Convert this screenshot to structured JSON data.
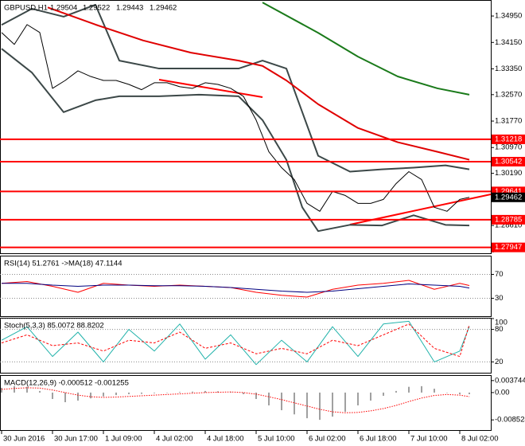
{
  "chart_data": [
    {
      "type": "price",
      "title": "GBPUSD,H1",
      "ohlc": [
        1.29504,
        1.29522,
        1.29443,
        1.29462
      ],
      "xlim": [
        -0.5,
        153.75
      ],
      "ylim": [
        1.2777,
        1.3541
      ],
      "grid": false,
      "yticks": [
        {
          "value": 1.3495,
          "label": "1.34950"
        },
        {
          "value": 1.3415,
          "label": "1.34150"
        },
        {
          "value": 1.3335,
          "label": "1.33350"
        },
        {
          "value": 1.3257,
          "label": "1.32570"
        },
        {
          "value": 1.3177,
          "label": "1.31770"
        },
        {
          "value": 1.3097,
          "label": "1.30970"
        },
        {
          "value": 1.3019,
          "label": "1.30190"
        },
        {
          "value": 1.2861,
          "label": "1.28610"
        },
        {
          "value": 1.2781,
          "label": "1.27810"
        }
      ],
      "levels": [
        1.31218,
        1.30542,
        1.29641,
        1.28785,
        1.27947
      ],
      "level_color": "#ff0000",
      "series": [
        {
          "color": "#3c4848",
          "width": 2,
          "x": [
            0,
            9.5,
            19.5,
            29.5,
            37,
            49.5,
            62,
            74.5,
            82,
            89.5,
            94.5,
            99.5,
            109.5,
            119.5,
            129.5,
            139.5,
            147
          ],
          "values": [
            1.3468,
            1.3517,
            1.3493,
            1.3529,
            1.336,
            1.3336,
            1.3336,
            1.3336,
            1.336,
            1.3336,
            1.3204,
            1.3072,
            1.3024,
            1.3031,
            1.3036,
            1.3043,
            1.3031
          ]
        },
        {
          "color": "#3c4848",
          "width": 2,
          "x": [
            0,
            9.5,
            19.5,
            29.5,
            37,
            49.5,
            62,
            74.5,
            82,
            89.5,
            94.5,
            99.5,
            109.5,
            119.5,
            129.5,
            139.5,
            147
          ],
          "values": [
            1.3396,
            1.3324,
            1.3204,
            1.324,
            1.3252,
            1.3252,
            1.3257,
            1.3252,
            1.318,
            1.306,
            1.2916,
            1.2844,
            1.2863,
            1.2861,
            1.2892,
            1.2863,
            1.2861
          ]
        },
        {
          "color": "#e00000",
          "width": 2,
          "x": [
            14.5,
            29.5,
            44.5,
            59.5,
            74.5,
            82,
            89.5,
            99.5,
            112,
            124.5,
            137,
            147
          ],
          "values": [
            1.3521,
            1.3469,
            1.3421,
            1.3384,
            1.336,
            1.3344,
            1.33,
            1.3228,
            1.3156,
            1.3113,
            1.3084,
            1.306
          ]
        },
        {
          "color": "#1a7a1a",
          "width": 2,
          "x": [
            82,
            99.5,
            112,
            124.5,
            137,
            147
          ],
          "values": [
            1.3536,
            1.3444,
            1.3372,
            1.3312,
            1.3276,
            1.3257
          ]
        },
        {
          "color": "#000000",
          "width": 1,
          "x": [
            0,
            4,
            8,
            12,
            16,
            20,
            24,
            28,
            32,
            36,
            40,
            44,
            48,
            52,
            56,
            60,
            64,
            68,
            72,
            76,
            80,
            84,
            88,
            92,
            96,
            100,
            104,
            108,
            112,
            116,
            120,
            124,
            128,
            132,
            136,
            140,
            144,
            147
          ],
          "values": [
            1.3445,
            1.3409,
            1.3469,
            1.3445,
            1.3276,
            1.33,
            1.3329,
            1.3312,
            1.33,
            1.33,
            1.3288,
            1.3272,
            1.3293,
            1.3293,
            1.3281,
            1.3276,
            1.3293,
            1.3288,
            1.3276,
            1.3252,
            1.318,
            1.3084,
            1.3036,
            1.3,
            1.2928,
            1.2904,
            1.2964,
            1.2952,
            1.2928,
            1.2928,
            1.294,
            1.2988,
            1.3024,
            1.3,
            1.2916,
            1.2904,
            1.294,
            1.29462
          ]
        }
      ]
    },
    {
      "type": "line",
      "title": "RSI(14) 51.2761 ->MA(18) 47.1144",
      "xlim": [
        -0.5,
        153.75
      ],
      "ylim": [
        0,
        100
      ],
      "yticks": [
        30,
        70
      ],
      "grid": true,
      "x": [
        0,
        8,
        16,
        24,
        32,
        40,
        48,
        56,
        64,
        72,
        80,
        88,
        96,
        104,
        112,
        120,
        128,
        136,
        144,
        147
      ],
      "series": [
        {
          "color": "#ff0000",
          "width": 1,
          "values": [
            55,
            58,
            50,
            40,
            55,
            52,
            50,
            52,
            50,
            48,
            40,
            35,
            32,
            45,
            52,
            55,
            60,
            45,
            55,
            51.2761
          ]
        },
        {
          "color": "#000080",
          "width": 1,
          "values": [
            55,
            55,
            52,
            50,
            52,
            52,
            51,
            51,
            50,
            48,
            45,
            42,
            40,
            42,
            46,
            50,
            54,
            52,
            50,
            47.1144
          ]
        }
      ]
    },
    {
      "type": "line",
      "title": "Stoch(5,3,3) 85.0072 88.8202",
      "xlim": [
        -0.5,
        153.75
      ],
      "ylim": [
        0,
        100
      ],
      "yticks": [
        20,
        80,
        100
      ],
      "grid": true,
      "x": [
        0,
        8,
        16,
        24,
        32,
        40,
        48,
        56,
        64,
        72,
        80,
        88,
        96,
        104,
        112,
        120,
        128,
        136,
        144,
        147
      ],
      "series": [
        {
          "color": "#20b2aa",
          "width": 1,
          "values": [
            60,
            85,
            30,
            75,
            20,
            80,
            40,
            90,
            25,
            70,
            15,
            60,
            20,
            85,
            30,
            90,
            95,
            20,
            40,
            85.0072
          ]
        },
        {
          "color": "#ff0000",
          "width": 1,
          "style": "dashed",
          "values": [
            55,
            70,
            50,
            55,
            40,
            60,
            55,
            75,
            45,
            55,
            35,
            45,
            35,
            60,
            50,
            70,
            90,
            45,
            30,
            88.8202
          ]
        }
      ]
    },
    {
      "type": "macd",
      "title": "MACD(12,26,9) -0.000512 -0.001255",
      "xlim": [
        -0.5,
        153.75
      ],
      "ylim": [
        -0.0117,
        0.0052
      ],
      "grid": false,
      "yticks": [
        0.003744,
        {
          "value": 0,
          "label": "0.00"
        },
        -0.008524
      ],
      "x": [
        0,
        4,
        8,
        12,
        16,
        20,
        24,
        28,
        32,
        36,
        40,
        44,
        48,
        52,
        56,
        60,
        64,
        68,
        72,
        76,
        80,
        84,
        88,
        92,
        96,
        100,
        104,
        108,
        112,
        116,
        120,
        124,
        128,
        132,
        136,
        140,
        144,
        147
      ],
      "bars": {
        "color": "#a0a0a0",
        "values": [
          0.0015,
          0.002,
          0.0018,
          0.0005,
          -0.002,
          -0.003,
          -0.0025,
          -0.0018,
          -0.0012,
          -0.0008,
          -0.0005,
          -0.0004,
          -0.0002,
          0,
          0.0002,
          0.0003,
          0.0005,
          0.0004,
          0.0002,
          -0.0005,
          -0.002,
          -0.004,
          -0.0055,
          -0.0068,
          -0.008,
          -0.0085,
          -0.0075,
          -0.006,
          -0.004,
          -0.0025,
          -0.001,
          0.0005,
          0.0018,
          0.002,
          0.0012,
          0,
          -0.0005,
          -0.000512
        ]
      },
      "series": [
        {
          "color": "#ff0000",
          "width": 1,
          "style": "dotted",
          "values": [
            0.001,
            0.0013,
            0.0015,
            0.0014,
            0.0008,
            0,
            -0.0008,
            -0.0013,
            -0.0015,
            -0.0014,
            -0.0012,
            -0.001,
            -0.0008,
            -0.0006,
            -0.0004,
            -0.0002,
            0,
            0.0001,
            0.0002,
            0,
            -0.0005,
            -0.0013,
            -0.0022,
            -0.0032,
            -0.0042,
            -0.0052,
            -0.006,
            -0.0063,
            -0.0062,
            -0.0057,
            -0.005,
            -0.004,
            -0.0028,
            -0.0017,
            -0.0009,
            -0.0006,
            -0.0008,
            -0.001255
          ]
        }
      ],
      "xticks": [
        {
          "value": 0,
          "label": "30 Jun 2016"
        },
        {
          "value": 16,
          "label": "30 Jun 17:00"
        },
        {
          "value": 32,
          "label": "1 Jul 09:00"
        },
        {
          "value": 48,
          "label": "4 Jul 02:00"
        },
        {
          "value": 64,
          "label": "4 Jul 18:00"
        },
        {
          "value": 80,
          "label": "5 Jul 10:00"
        },
        {
          "value": 96,
          "label": "6 Jul 02:00"
        },
        {
          "value": 112,
          "label": "6 Jul 18:00"
        },
        {
          "value": 128,
          "label": "7 Jul 10:00"
        },
        {
          "value": 144,
          "label": "8 Jul 02:00"
        }
      ]
    }
  ]
}
